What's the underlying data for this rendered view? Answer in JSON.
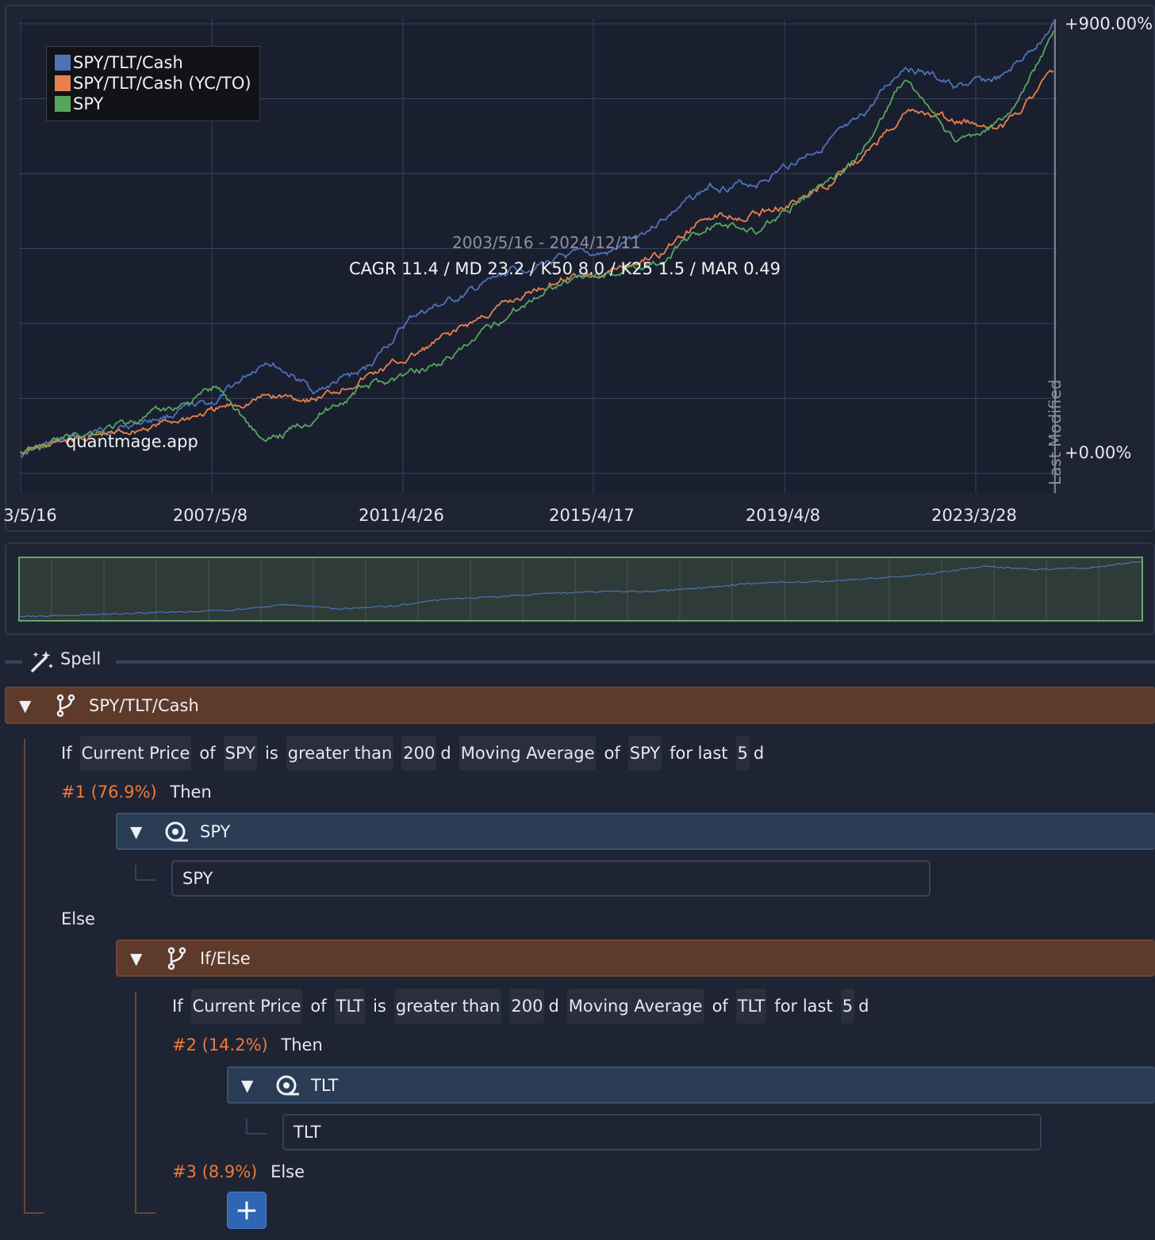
{
  "chart": {
    "legend": [
      {
        "name": "SPY/TLT/Cash",
        "color": "#4d72b8"
      },
      {
        "name": "SPY/TLT/Cash (YC/TO)",
        "color": "#e8814a"
      },
      {
        "name": "SPY",
        "color": "#57a65f"
      }
    ],
    "x_ticks": [
      "3/5/16",
      "2007/5/8",
      "2011/4/26",
      "2015/4/17",
      "2019/4/8",
      "2023/3/28"
    ],
    "y_labels": {
      "top": "+900.00%",
      "bottom": "+0.00%"
    },
    "date_range": "2003/5/16 - 2024/12/11",
    "stats": "CAGR 11.4 / MD 23.2 / K50 8.0 / K25 1.5 / MAR 0.49",
    "watermark": "quantmage.app",
    "last_modified": "Last Modified"
  },
  "chart_data": {
    "type": "line",
    "x": [
      "2003",
      "2004",
      "2005",
      "2006",
      "2007",
      "2008",
      "2009",
      "2010",
      "2011",
      "2012",
      "2013",
      "2014",
      "2015",
      "2016",
      "2017",
      "2018",
      "2019",
      "2020",
      "2021",
      "2022",
      "2023",
      "2024"
    ],
    "series": [
      {
        "name": "SPY/TLT/Cash",
        "color": "#4d72b8",
        "values": [
          0,
          30,
          55,
          80,
          110,
          200,
          130,
          175,
          290,
          330,
          385,
          410,
          420,
          490,
          560,
          570,
          630,
          690,
          820,
          770,
          790,
          900
        ]
      },
      {
        "name": "SPY/TLT/Cash (YC/TO)",
        "color": "#e8814a",
        "values": [
          0,
          28,
          42,
          65,
          90,
          120,
          115,
          160,
          205,
          265,
          320,
          370,
          385,
          420,
          500,
          505,
          540,
          610,
          720,
          695,
          690,
          800
        ]
      },
      {
        "name": "SPY",
        "color": "#57a65f",
        "values": [
          0,
          35,
          60,
          90,
          140,
          20,
          80,
          140,
          170,
          215,
          300,
          365,
          380,
          405,
          480,
          470,
          540,
          620,
          790,
          650,
          700,
          880
        ]
      }
    ],
    "ylim": [
      0,
      900
    ],
    "grid": true,
    "legend_position": "top-left"
  },
  "navigator": {
    "color": "#4d72b8"
  },
  "spell": {
    "label": "Spell"
  },
  "tree": {
    "root": {
      "title": "SPY/TLT/Cash"
    },
    "cond1": {
      "if": "If",
      "indicator": "Current Price",
      "of1": "of",
      "ticker": "SPY",
      "is": "is",
      "op": "greater than",
      "period": "200",
      "unit": "d",
      "ma": "Moving Average",
      "of2": "of",
      "ticker2": "SPY",
      "forlast": "for last",
      "days": "5",
      "unit2": "d"
    },
    "branch1": {
      "num": "#1 (76.9%)",
      "then": "Then"
    },
    "asset1": {
      "title": "SPY",
      "value": "SPY"
    },
    "else1": "Else",
    "ifelse": {
      "title": "If/Else"
    },
    "cond2": {
      "if": "If",
      "indicator": "Current Price",
      "of1": "of",
      "ticker": "TLT",
      "is": "is",
      "op": "greater than",
      "period": "200",
      "unit": "d",
      "ma": "Moving Average",
      "of2": "of",
      "ticker2": "TLT",
      "forlast": "for last",
      "days": "5",
      "unit2": "d"
    },
    "branch2": {
      "num": "#2 (14.2%)",
      "then": "Then"
    },
    "asset2": {
      "title": "TLT",
      "value": "TLT"
    },
    "branch3": {
      "num": "#3 (8.9%)",
      "else": "Else"
    },
    "add_label": "+"
  }
}
